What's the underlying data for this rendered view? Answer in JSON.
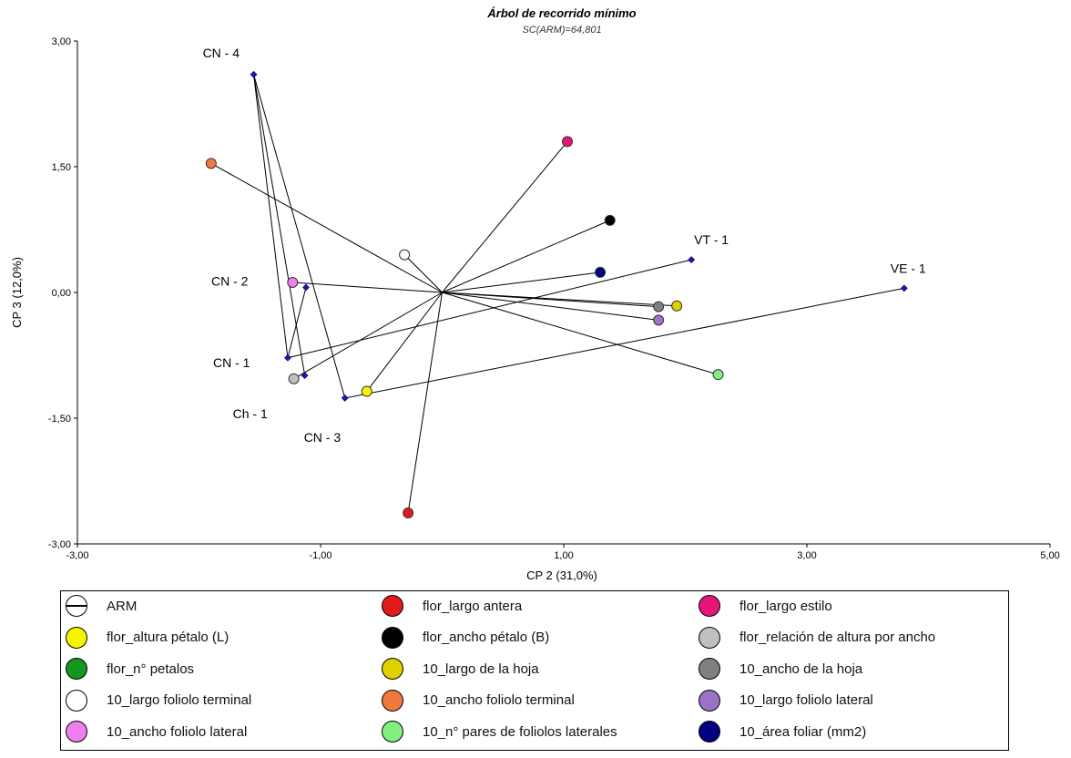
{
  "chart_data": {
    "type": "scatter",
    "title": "Árbol de recorrido mínimo",
    "subtitle": "SC(ARM)=64,801",
    "xlabel": "CP 2 (31,0%)",
    "ylabel": "CP 3 (12,0%)",
    "xlim": [
      -3,
      5
    ],
    "ylim": [
      -3,
      3
    ],
    "xticks": [
      "-3,00",
      "-1,00",
      "1,00",
      "3,00",
      "5,00"
    ],
    "yticks": [
      "-3,00",
      "-1,50",
      "0,00",
      "1,50",
      "3,00"
    ],
    "grid": false,
    "legend_position": "bottom",
    "observations": [
      {
        "label": "CN - 4",
        "x": -1.55,
        "y": 2.6
      },
      {
        "label": "VT - 1",
        "x": 2.05,
        "y": 0.39
      },
      {
        "label": "VE - 1",
        "x": 3.8,
        "y": 0.05
      },
      {
        "label": "CN - 2",
        "x": -1.12,
        "y": 0.06
      },
      {
        "label": "CN - 1",
        "x": -1.27,
        "y": -0.78
      },
      {
        "label": "Ch - 1",
        "x": -1.13,
        "y": -0.99
      },
      {
        "label": "CN - 3",
        "x": -0.8,
        "y": -1.26
      }
    ],
    "variables": [
      {
        "name": "flor_largo antera",
        "x": -0.28,
        "y": -2.63,
        "color": "#e31a1c"
      },
      {
        "name": "flor_largo estilo",
        "x": 1.03,
        "y": 1.8,
        "color": "#e6157a"
      },
      {
        "name": "flor_altura pétalo (L)",
        "x": -0.62,
        "y": -1.18,
        "color": "#f5f500"
      },
      {
        "name": "flor_ancho pétalo (B)",
        "x": 1.38,
        "y": 0.86,
        "color": "#000000"
      },
      {
        "name": "flor_relación de altura por ancho",
        "x": -1.22,
        "y": -1.03,
        "color": "#c0c0c0"
      },
      {
        "name": "10_largo de la hoja",
        "x": 1.93,
        "y": -0.16,
        "color": "#e1d000"
      },
      {
        "name": "10_ancho de la hoja",
        "x": 1.78,
        "y": -0.17,
        "color": "#808080"
      },
      {
        "name": "10_largo foliolo terminal",
        "x": -0.31,
        "y": 0.45,
        "color": "#ffffff"
      },
      {
        "name": "10_ancho foliolo terminal",
        "x": -1.9,
        "y": 1.54,
        "color": "#f07a3c"
      },
      {
        "name": "10_largo foliolo lateral",
        "x": 1.78,
        "y": -0.33,
        "color": "#9a73c6"
      },
      {
        "name": "10_ancho foliolo lateral",
        "x": -1.23,
        "y": 0.12,
        "color": "#ee80ee"
      },
      {
        "name": "10_n° pares de foliolos laterales",
        "x": 2.27,
        "y": -0.98,
        "color": "#80f080"
      },
      {
        "name": "10_área foliar (mm2)",
        "x": 1.3,
        "y": 0.24,
        "color": "#000080"
      }
    ],
    "tree_edges": [
      [
        "CN - 4",
        "CN - 1"
      ],
      [
        "CN - 4",
        "Ch - 1"
      ],
      [
        "CN - 4",
        "CN - 3"
      ],
      [
        "CN - 2",
        "CN - 1"
      ],
      [
        "CN - 1",
        "VT - 1"
      ],
      [
        "CN - 3",
        "VE - 1"
      ]
    ],
    "legend": [
      {
        "label": "ARM",
        "color": "#ffffff",
        "icon": "arm-line-circle"
      },
      {
        "label": "flor_largo antera",
        "color": "#e31a1c"
      },
      {
        "label": "flor_largo estilo",
        "color": "#e6157a"
      },
      {
        "label": "flor_altura pétalo (L)",
        "color": "#f5f500"
      },
      {
        "label": "flor_ancho pétalo (B)",
        "color": "#000000"
      },
      {
        "label": "flor_relación de altura por ancho",
        "color": "#c0c0c0"
      },
      {
        "label": "flor_n° petalos",
        "color": "#15961f"
      },
      {
        "label": "10_largo de la hoja",
        "color": "#e1d000"
      },
      {
        "label": "10_ancho de la hoja",
        "color": "#808080"
      },
      {
        "label": "10_largo foliolo terminal",
        "color": "#ffffff"
      },
      {
        "label": "10_ancho foliolo terminal",
        "color": "#f07a3c"
      },
      {
        "label": "10_largo foliolo lateral",
        "color": "#9a73c6"
      },
      {
        "label": "10_ancho foliolo lateral",
        "color": "#ee80ee"
      },
      {
        "label": "10_n° pares de foliolos laterales",
        "color": "#80f080"
      },
      {
        "label": "10_área foliar (mm2)",
        "color": "#000080"
      }
    ]
  }
}
